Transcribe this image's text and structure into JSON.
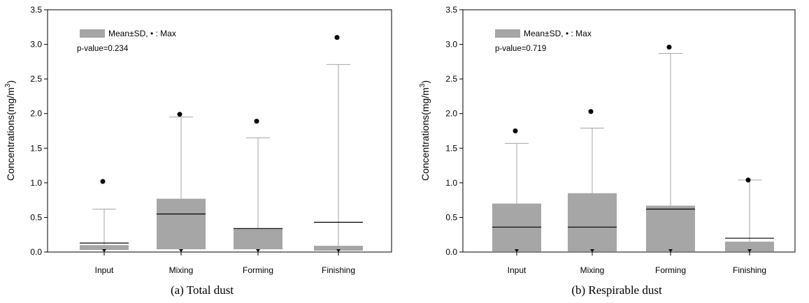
{
  "chart_data": [
    {
      "type": "box",
      "caption": "(a) Total dust",
      "ylabel": "Concentrations(mg/m³)",
      "ylabel_main": "Concentrations(mg/m",
      "ylabel_sup": "3",
      "ylabel_close": ")",
      "ylim": [
        0,
        3.5
      ],
      "yticks": [
        "0.0",
        "0.5",
        "1.0",
        "1.5",
        "2.0",
        "2.5",
        "3.0",
        "3.5"
      ],
      "categories": [
        "Input",
        "Mixing",
        "Forming",
        "Finishing"
      ],
      "legend_label": "Mean±SD, • : Max",
      "annotation": "p-value=0.234",
      "legend_position": "top-left",
      "grid": false,
      "box_color": "#a6a6a6",
      "whisker_color": "#a6a6a6",
      "boxes": [
        {
          "category": "Input",
          "lower": 0.03,
          "upper": 0.1,
          "mean": 0.13,
          "whisker_top": 0.62,
          "max": 1.02
        },
        {
          "category": "Mixing",
          "lower": 0.04,
          "upper": 0.77,
          "mean": 0.55,
          "whisker_top": 1.95,
          "max": 1.99
        },
        {
          "category": "Forming",
          "lower": 0.04,
          "upper": 0.34,
          "mean": 0.34,
          "whisker_top": 1.65,
          "max": 1.89
        },
        {
          "category": "Finishing",
          "lower": 0.02,
          "upper": 0.09,
          "mean": 0.43,
          "whisker_top": 2.71,
          "max": 3.1
        }
      ]
    },
    {
      "type": "box",
      "caption": "(b) Respirable dust",
      "ylabel": "Concentrations(mg/m³)",
      "ylabel_main": "Concentrations(mg/m",
      "ylabel_sup": "3",
      "ylabel_close": ")",
      "ylim": [
        0,
        3.5
      ],
      "yticks": [
        "0.0",
        "0.5",
        "1.0",
        "1.5",
        "2.0",
        "2.5",
        "3.0",
        "3.5"
      ],
      "categories": [
        "Input",
        "Mixing",
        "Forming",
        "Finishing"
      ],
      "legend_label": "Mean±SD, • : Max",
      "annotation": "p-value=0.719",
      "legend_position": "top-left",
      "grid": false,
      "box_color": "#a6a6a6",
      "whisker_color": "#a6a6a6",
      "boxes": [
        {
          "category": "Input",
          "lower": 0.01,
          "upper": 0.7,
          "mean": 0.36,
          "whisker_top": 1.57,
          "max": 1.75
        },
        {
          "category": "Mixing",
          "lower": 0.01,
          "upper": 0.85,
          "mean": 0.36,
          "whisker_top": 1.79,
          "max": 2.03
        },
        {
          "category": "Forming",
          "lower": 0.01,
          "upper": 0.67,
          "mean": 0.62,
          "whisker_top": 2.87,
          "max": 2.96
        },
        {
          "category": "Finishing",
          "lower": 0.01,
          "upper": 0.15,
          "mean": 0.2,
          "whisker_top": 1.04,
          "max": 1.04
        }
      ]
    }
  ]
}
